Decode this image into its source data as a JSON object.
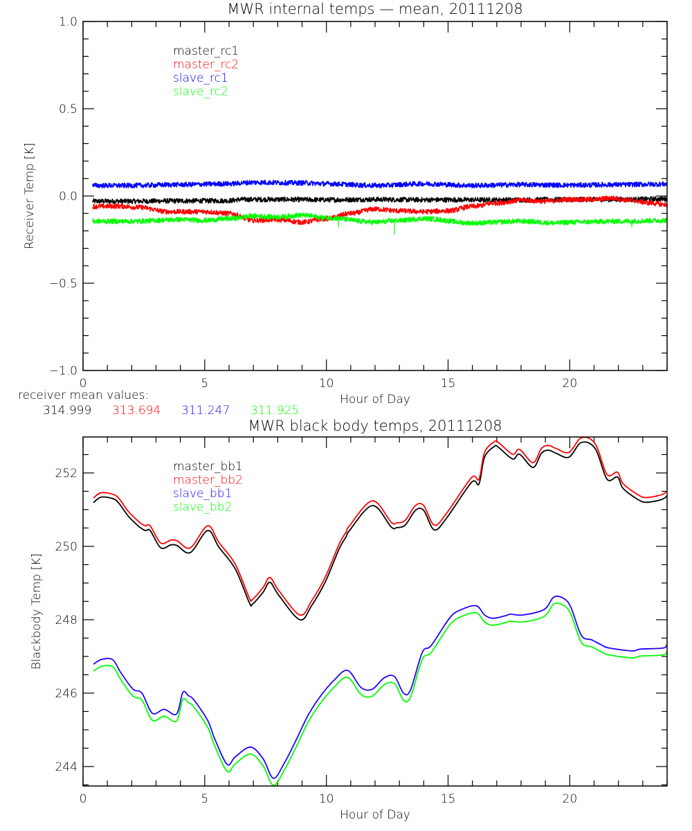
{
  "chart_data": [
    {
      "type": "line",
      "title": "MWR internal temps — mean, 20111208",
      "xlabel": "Hour of Day",
      "ylabel": "Receiver Temp [K]",
      "xlim": [
        0,
        24
      ],
      "ylim": [
        -1.0,
        1.0
      ],
      "xticks": [
        0,
        5,
        10,
        15,
        20
      ],
      "xtick_labels": [
        "0",
        "5",
        "10",
        "15",
        "20"
      ],
      "x_minor_step": 1,
      "yticks": [
        -1.0,
        -0.5,
        0.0,
        0.5,
        1.0
      ],
      "ytick_labels": [
        "−1.0",
        "−0.5",
        "0.0",
        "0.5",
        "1.0"
      ],
      "y_minor_step": 0.1,
      "grid": false,
      "legend_position": "top-left",
      "noisy": true,
      "series": [
        {
          "name": "master_rc1",
          "color": "#000000",
          "x": [
            0.4,
            2,
            4,
            6,
            6.5,
            8,
            10,
            12,
            14,
            16,
            18,
            20,
            22,
            24
          ],
          "y": [
            -0.03,
            -0.03,
            -0.028,
            -0.027,
            -0.02,
            -0.02,
            -0.022,
            -0.02,
            -0.022,
            -0.022,
            -0.022,
            -0.02,
            -0.02,
            -0.017
          ]
        },
        {
          "name": "master_rc2",
          "color": "#ff0000",
          "x": [
            0.4,
            1.5,
            2.3,
            3.5,
            5,
            6,
            7,
            8,
            9,
            10,
            11,
            12,
            13,
            14,
            15,
            16,
            17,
            18,
            19,
            20,
            21,
            21.7,
            22.5,
            23.3,
            24
          ],
          "y": [
            -0.06,
            -0.058,
            -0.065,
            -0.09,
            -0.09,
            -0.1,
            -0.14,
            -0.135,
            -0.15,
            -0.13,
            -0.1,
            -0.075,
            -0.085,
            -0.09,
            -0.085,
            -0.06,
            -0.04,
            -0.025,
            -0.03,
            -0.02,
            -0.02,
            -0.012,
            -0.025,
            -0.04,
            -0.05
          ]
        },
        {
          "name": "slave_rc1",
          "color": "#0000ff",
          "x": [
            0.4,
            2,
            4,
            6,
            7,
            9,
            10,
            12,
            14,
            16,
            18,
            20,
            22,
            24
          ],
          "y": [
            0.06,
            0.06,
            0.065,
            0.07,
            0.078,
            0.075,
            0.07,
            0.06,
            0.07,
            0.06,
            0.065,
            0.062,
            0.065,
            0.068
          ]
        },
        {
          "name": "slave_rc2",
          "color": "#00ff00",
          "x": [
            0.4,
            2,
            4,
            5,
            6,
            7,
            8,
            9,
            10,
            12,
            13,
            14,
            16,
            18,
            19.5,
            20,
            22,
            24
          ],
          "y": [
            -0.145,
            -0.145,
            -0.135,
            -0.14,
            -0.13,
            -0.115,
            -0.12,
            -0.11,
            -0.125,
            -0.15,
            -0.14,
            -0.13,
            -0.155,
            -0.145,
            -0.155,
            -0.15,
            -0.145,
            -0.14
          ],
          "spikes": [
            {
              "x": 10.5,
              "y": -0.18
            },
            {
              "x": 12.8,
              "y": -0.22
            },
            {
              "x": 22.55,
              "y": -0.18
            }
          ]
        }
      ]
    },
    {
      "type": "line",
      "title": "MWR black body temps, 20111208",
      "xlabel": "Hour of Day",
      "ylabel": "Blackbody Temp [K]",
      "xlim": [
        0,
        24
      ],
      "ylim": [
        243.47,
        252.98
      ],
      "xticks": [
        0,
        5,
        10,
        15,
        20
      ],
      "xtick_labels": [
        "0",
        "5",
        "10",
        "15",
        "20"
      ],
      "x_minor_step": 1,
      "yticks": [
        244,
        246,
        248,
        250,
        252
      ],
      "ytick_labels": [
        "244",
        "246",
        "248",
        "250",
        "252"
      ],
      "y_minor_step": 0.5,
      "grid": false,
      "legend_position": "top-left",
      "series": [
        {
          "name": "master_bb1",
          "color": "#000000",
          "x": [
            0.43,
            0.74,
            1.22,
            1.48,
            1.85,
            2.28,
            2.56,
            2.76,
            3.19,
            3.61,
            3.87,
            4.41,
            5.12,
            5.58,
            6.26,
            6.83,
            6.97,
            7.4,
            7.68,
            8.05,
            8.91,
            9.39,
            9.96,
            10.53,
            10.81,
            10.95,
            11.89,
            12.66,
            12.89,
            13.24,
            13.66,
            14.0,
            14.43,
            14.94,
            15.96,
            16.27,
            16.5,
            16.9,
            17.07,
            17.65,
            17.94,
            18.49,
            18.83,
            19.12,
            19.46,
            19.97,
            20.48,
            21.05,
            21.53,
            21.96,
            22.19,
            22.79,
            23.16,
            23.79,
            24.0
          ],
          "y": [
            251.19,
            251.34,
            251.3,
            251.17,
            250.83,
            250.55,
            250.43,
            250.43,
            249.96,
            250.04,
            250.02,
            249.83,
            250.43,
            249.98,
            249.38,
            248.47,
            248.43,
            248.75,
            249.02,
            248.66,
            248.0,
            248.38,
            249.04,
            249.94,
            250.26,
            250.43,
            251.11,
            250.53,
            250.51,
            250.58,
            250.98,
            250.98,
            250.45,
            250.77,
            251.74,
            251.7,
            252.43,
            252.72,
            252.7,
            252.38,
            252.51,
            252.15,
            252.53,
            252.62,
            252.53,
            252.43,
            252.83,
            252.66,
            251.83,
            251.89,
            251.58,
            251.28,
            251.2,
            251.28,
            251.38
          ]
        },
        {
          "name": "master_bb2",
          "color": "#ff0000",
          "x": [
            0.43,
            0.74,
            1.22,
            1.48,
            1.85,
            2.28,
            2.56,
            2.76,
            3.19,
            3.61,
            3.87,
            4.41,
            5.12,
            5.58,
            6.26,
            6.83,
            6.97,
            7.4,
            7.68,
            8.05,
            8.91,
            9.39,
            9.96,
            10.53,
            10.81,
            10.95,
            11.89,
            12.66,
            12.89,
            13.24,
            13.66,
            14.0,
            14.43,
            14.94,
            15.96,
            16.27,
            16.5,
            16.9,
            17.07,
            17.65,
            17.94,
            18.49,
            18.83,
            19.12,
            19.46,
            19.97,
            20.48,
            21.05,
            21.53,
            21.96,
            22.19,
            22.79,
            23.16,
            23.79,
            24.0
          ],
          "y": [
            251.32,
            251.46,
            251.42,
            251.3,
            250.96,
            250.68,
            250.56,
            250.56,
            250.09,
            250.17,
            250.15,
            249.96,
            250.56,
            250.11,
            249.51,
            248.6,
            248.56,
            248.88,
            249.15,
            248.79,
            248.13,
            248.51,
            249.17,
            250.07,
            250.39,
            250.56,
            251.24,
            250.66,
            250.64,
            250.71,
            251.11,
            251.11,
            250.58,
            250.9,
            251.87,
            251.83,
            252.56,
            252.85,
            252.83,
            252.51,
            252.64,
            252.28,
            252.66,
            252.75,
            252.66,
            252.56,
            252.96,
            252.79,
            251.96,
            252.02,
            251.71,
            251.41,
            251.33,
            251.41,
            251.51
          ]
        },
        {
          "name": "slave_bb1",
          "color": "#2200ff",
          "x": [
            0.43,
            0.77,
            1.22,
            1.56,
            2.05,
            2.42,
            2.85,
            3.33,
            3.84,
            4.1,
            4.33,
            4.55,
            5.12,
            5.42,
            5.92,
            6.25,
            6.88,
            7.4,
            7.82,
            8.26,
            8.74,
            9.25,
            9.76,
            10.3,
            10.87,
            11.43,
            11.89,
            12.38,
            12.8,
            13.17,
            13.46,
            13.94,
            14.31,
            15.08,
            15.56,
            16.16,
            16.5,
            16.84,
            17.36,
            17.56,
            18.09,
            18.95,
            19.35,
            19.78,
            20.06,
            20.48,
            20.91,
            21.34,
            21.62,
            22.55,
            22.9,
            23.84,
            24.0
          ],
          "y": [
            246.79,
            246.92,
            246.91,
            246.55,
            246.11,
            246.0,
            245.45,
            245.56,
            245.43,
            246.02,
            245.93,
            245.82,
            245.26,
            244.74,
            244.06,
            244.26,
            244.53,
            244.21,
            243.68,
            244.08,
            244.7,
            245.4,
            245.92,
            246.34,
            246.62,
            246.15,
            246.11,
            246.42,
            246.45,
            246.0,
            246.09,
            247.11,
            247.3,
            248.06,
            248.28,
            248.38,
            248.13,
            248.04,
            248.11,
            248.15,
            248.13,
            248.28,
            248.62,
            248.57,
            248.32,
            247.57,
            247.45,
            247.3,
            247.23,
            247.15,
            247.2,
            247.23,
            247.34
          ]
        },
        {
          "name": "slave_bb2",
          "color": "#00ff00",
          "x": [
            0.43,
            0.77,
            1.22,
            1.56,
            2.05,
            2.42,
            2.85,
            3.33,
            3.84,
            4.1,
            4.33,
            4.55,
            5.12,
            5.42,
            5.92,
            6.25,
            6.88,
            7.4,
            7.82,
            8.26,
            8.74,
            9.25,
            9.76,
            10.3,
            10.87,
            11.43,
            11.89,
            12.38,
            12.8,
            13.17,
            13.46,
            13.94,
            14.31,
            15.08,
            15.56,
            16.16,
            16.5,
            16.84,
            17.36,
            17.56,
            18.09,
            18.95,
            19.35,
            19.78,
            20.06,
            20.48,
            20.91,
            21.34,
            21.62,
            22.55,
            22.9,
            23.84,
            24.0
          ],
          "y": [
            246.6,
            246.73,
            246.72,
            246.36,
            245.92,
            245.81,
            245.26,
            245.37,
            245.24,
            245.83,
            245.74,
            245.63,
            245.07,
            244.55,
            243.87,
            244.07,
            244.34,
            244.02,
            243.49,
            243.89,
            244.51,
            245.21,
            245.73,
            246.15,
            246.43,
            245.96,
            245.92,
            246.23,
            246.26,
            245.81,
            245.9,
            246.92,
            247.11,
            247.87,
            248.09,
            248.19,
            247.94,
            247.85,
            247.92,
            247.96,
            247.94,
            248.09,
            248.43,
            248.38,
            248.13,
            247.38,
            247.26,
            247.11,
            247.04,
            246.96,
            247.01,
            247.04,
            247.15
          ]
        }
      ]
    }
  ],
  "mean_values": {
    "label": "receiver mean values:",
    "values": [
      {
        "text": "314.999",
        "color": "#000000"
      },
      {
        "text": "313.694",
        "color": "#ff0000"
      },
      {
        "text": "311.247",
        "color": "#2200ff"
      },
      {
        "text": "311.925",
        "color": "#00ff00"
      }
    ]
  }
}
